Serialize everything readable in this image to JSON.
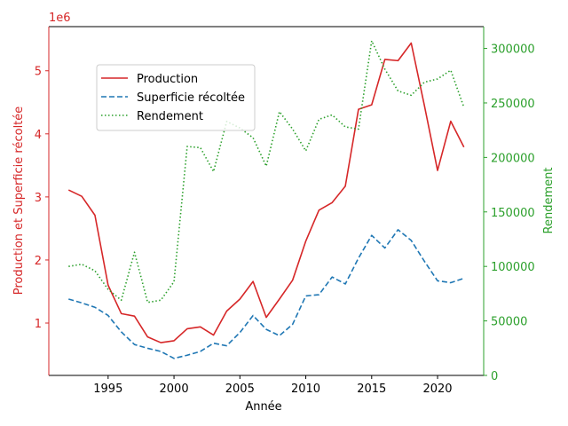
{
  "chart_data": {
    "type": "line",
    "xlabel": "Année",
    "ylabel_left": "Production et Superficie récoltée",
    "ylabel_right": "Rendement",
    "left_offset_label": "1e6",
    "x": [
      1992,
      1993,
      1994,
      1995,
      1996,
      1997,
      1998,
      1999,
      2000,
      2001,
      2002,
      2003,
      2004,
      2005,
      2006,
      2007,
      2008,
      2009,
      2010,
      2011,
      2012,
      2013,
      2014,
      2015,
      2016,
      2017,
      2018,
      2019,
      2020,
      2021,
      2022
    ],
    "xlim": [
      1990.5,
      2023.5
    ],
    "xticks": [
      1995,
      2000,
      2005,
      2010,
      2015,
      2020
    ],
    "ylim_left": [
      0.17,
      5.7
    ],
    "yticks_left": [
      1,
      2,
      3,
      4,
      5
    ],
    "ylim_right": [
      0,
      320000
    ],
    "yticks_right": [
      0,
      50000,
      100000,
      150000,
      200000,
      250000,
      300000
    ],
    "colors": {
      "left_axis": "#d62728",
      "right_axis": "#2ca02c",
      "production": "#d62728",
      "superficie": "#1f77b4",
      "rendement": "#2ca02c"
    },
    "series": [
      {
        "name": "Production",
        "axis": "left",
        "style": "solid",
        "values": [
          3.11,
          3.01,
          2.71,
          1.6,
          1.15,
          1.11,
          0.78,
          0.69,
          0.72,
          0.91,
          0.94,
          0.81,
          1.19,
          1.38,
          1.66,
          1.09,
          1.38,
          1.68,
          2.3,
          2.79,
          2.91,
          3.17,
          4.39,
          4.46,
          5.18,
          5.16,
          5.44,
          4.45,
          3.42,
          4.2,
          3.79
        ]
      },
      {
        "name": "Superficie récoltée",
        "axis": "left",
        "style": "dashed",
        "values": [
          1.38,
          1.32,
          1.25,
          1.12,
          0.86,
          0.66,
          0.6,
          0.55,
          0.44,
          0.49,
          0.55,
          0.68,
          0.64,
          0.85,
          1.12,
          0.9,
          0.8,
          0.98,
          1.43,
          1.45,
          1.73,
          1.62,
          2.03,
          2.39,
          2.19,
          2.48,
          2.31,
          1.98,
          1.67,
          1.64,
          1.71
        ]
      },
      {
        "name": "Rendement",
        "axis": "right",
        "style": "dotted",
        "values": [
          100000,
          102000,
          96000,
          79000,
          69000,
          113000,
          67000,
          69000,
          86000,
          210000,
          209000,
          187000,
          233000,
          227000,
          218000,
          192000,
          242000,
          226000,
          206000,
          235000,
          239000,
          228000,
          226000,
          307000,
          281000,
          261000,
          257000,
          269000,
          272000,
          280000,
          246000
        ]
      }
    ]
  }
}
